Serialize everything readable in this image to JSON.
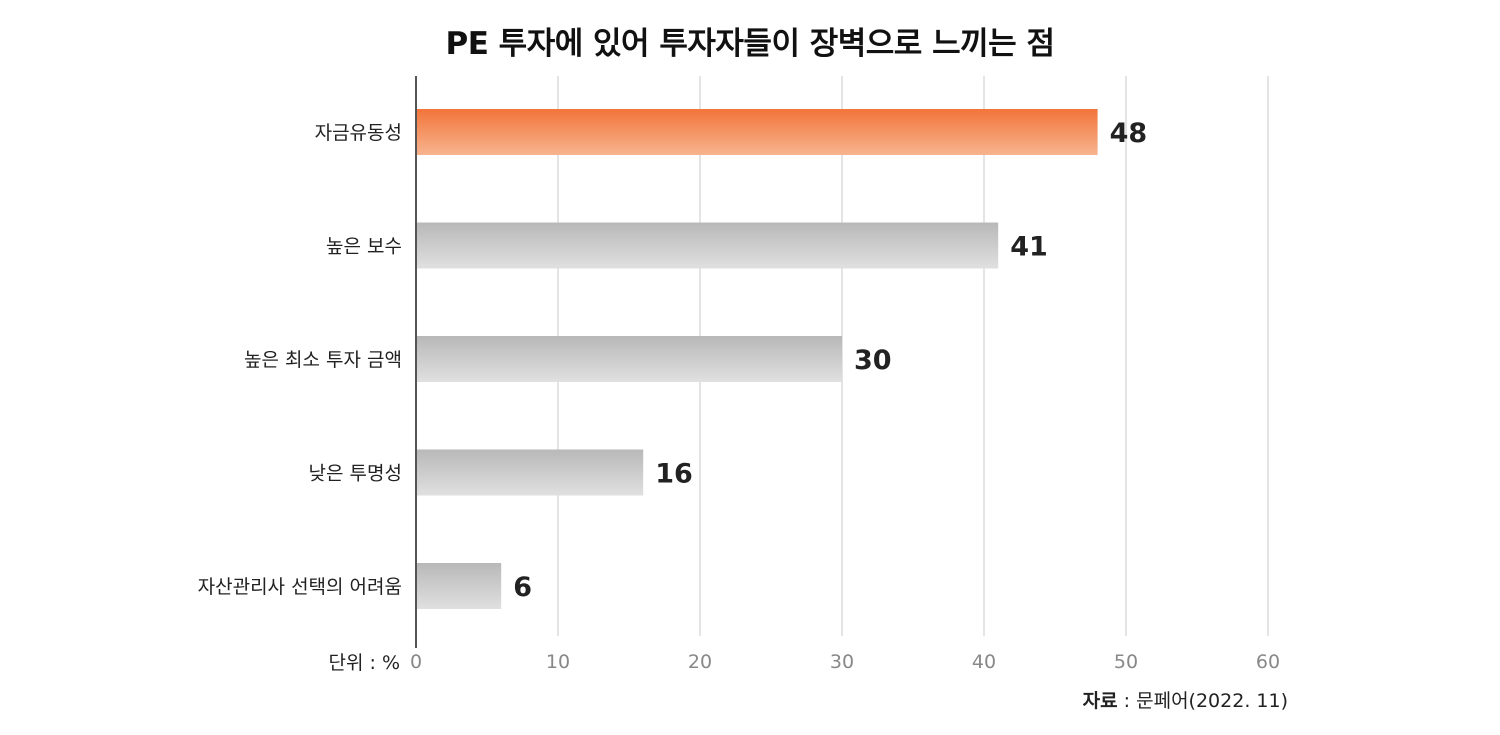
{
  "chart_data": {
    "type": "bar",
    "orientation": "horizontal",
    "title": "PE 투자에 있어 투자자들이 장벽으로 느끼는 점",
    "categories": [
      "자금유동성",
      "높은 보수",
      "높은 최소 투자 금액",
      "낮은 투명성",
      "자산관리사 선택의 어려움"
    ],
    "values": [
      48,
      41,
      30,
      16,
      6
    ],
    "highlight_index": 0,
    "xlim": [
      0,
      60
    ],
    "xticks": [
      0,
      10,
      20,
      30,
      40,
      50,
      60
    ],
    "grid": "vertical",
    "unit_label": "단위 : %",
    "source_key": "자료",
    "source_text": " : 문페어(2022. 11)",
    "colors": {
      "highlight_top": "#f2743a",
      "highlight_bottom": "#f7b48f",
      "bar_top": "#b8b8b8",
      "bar_bottom": "#e0e0e0",
      "grid": "#c8c8c8",
      "axis": "#555555",
      "tick_text": "#888888",
      "label_text": "#222222",
      "value_text": "#222222"
    }
  }
}
